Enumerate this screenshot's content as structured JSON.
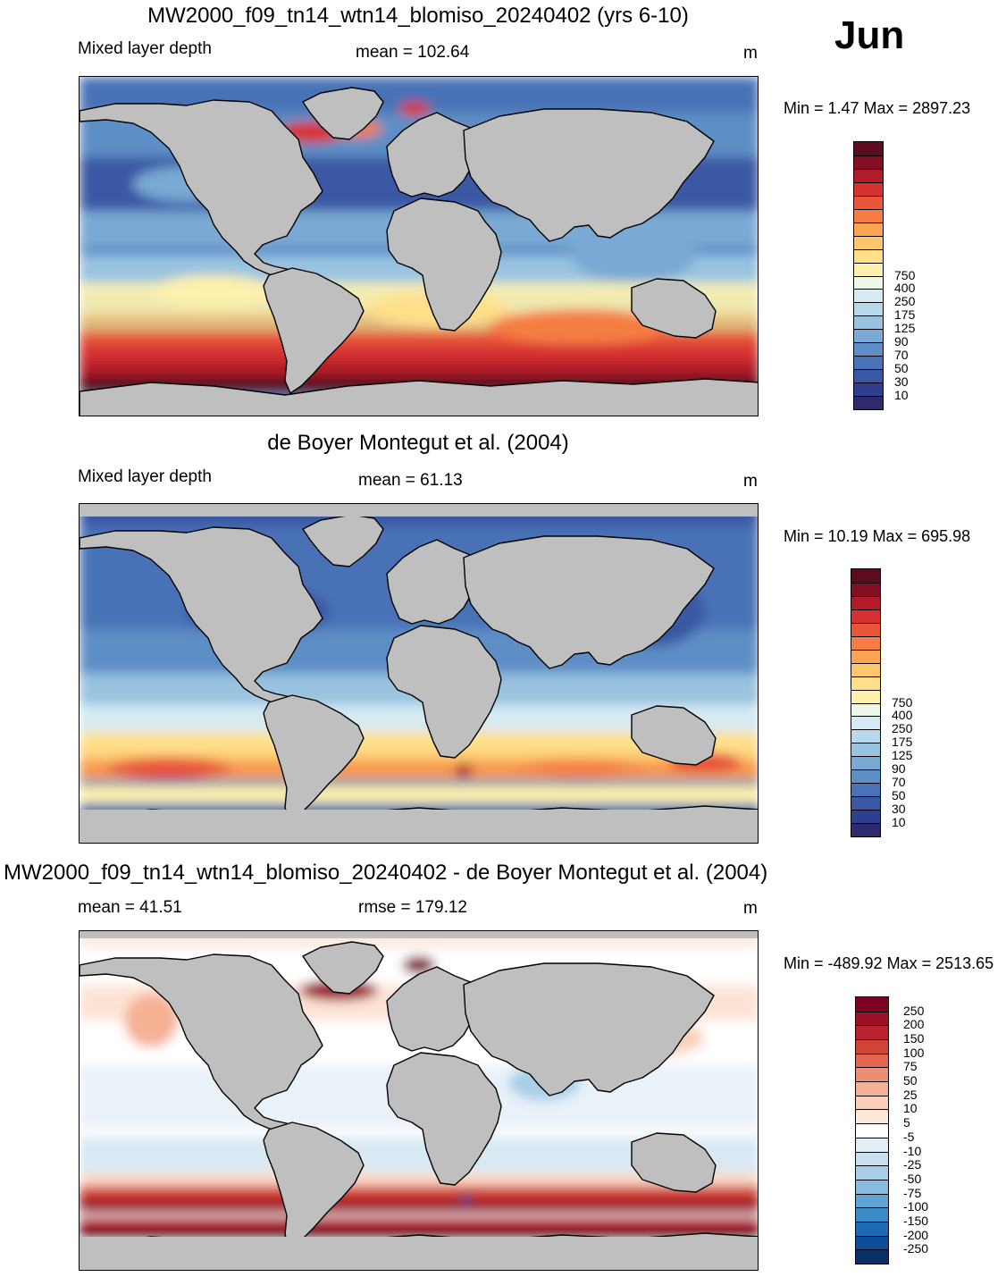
{
  "header": {
    "month": "Jun"
  },
  "panels": [
    {
      "id": "model",
      "title": "MW2000_f09_tn14_wtn14_blomiso_20240402 (yrs 6-10)",
      "left_label": "Mixed layer depth",
      "center_label": "mean = 102.64",
      "units": "m",
      "minmax": "Min =   1.47 Max = 2897.23"
    },
    {
      "id": "obs",
      "title": "de Boyer Montegut et al. (2004)",
      "left_label": "Mixed layer depth",
      "center_label": "mean =  61.13",
      "units": "m",
      "minmax": "Min =  10.19 Max = 695.98"
    },
    {
      "id": "diff",
      "title": "MW2000_f09_tn14_wtn14_blomiso_20240402 - de Boyer Montegut et al. (2004)",
      "left_label": "mean =  41.51",
      "center_label": "rmse = 179.12",
      "units": "m",
      "minmax": "Min = -489.92 Max = 2513.65"
    }
  ],
  "colorbars": {
    "seq": {
      "colors": [
        "#2d2a6e",
        "#2f3f8f",
        "#3b58a4",
        "#4a72b6",
        "#5d8ec6",
        "#79a9d4",
        "#99c3e0",
        "#b8d9ec",
        "#d5eaf3",
        "#eef7e8",
        "#fdf1ad",
        "#fee08b",
        "#fdc56c",
        "#fba453",
        "#f57d43",
        "#e85537",
        "#d53131",
        "#b11b2a",
        "#820f24",
        "#5e0b1d"
      ],
      "labels": [
        "10",
        "30",
        "50",
        "70",
        "90",
        "125",
        "175",
        "250",
        "400",
        "750"
      ]
    },
    "div": {
      "colors": [
        "#08306b",
        "#0d4c96",
        "#1f6bb3",
        "#3a8ac4",
        "#5ea3d2",
        "#86bcdf",
        "#a9cfe8",
        "#c8e0f0",
        "#e3eef7",
        "#ffffff",
        "#fde8dc",
        "#fbd0b9",
        "#f6b195",
        "#ef8d73",
        "#e26650",
        "#d14336",
        "#bb2230",
        "#9c1127",
        "#7f0022"
      ],
      "labels": [
        "-250",
        "-200",
        "-150",
        "-100",
        "-75",
        "-50",
        "-25",
        "-10",
        "-5",
        "5",
        "10",
        "25",
        "50",
        "75",
        "100",
        "150",
        "200",
        "250"
      ]
    }
  },
  "map": {
    "land_color": "#bfbfbf",
    "coast_color": "#000000"
  }
}
